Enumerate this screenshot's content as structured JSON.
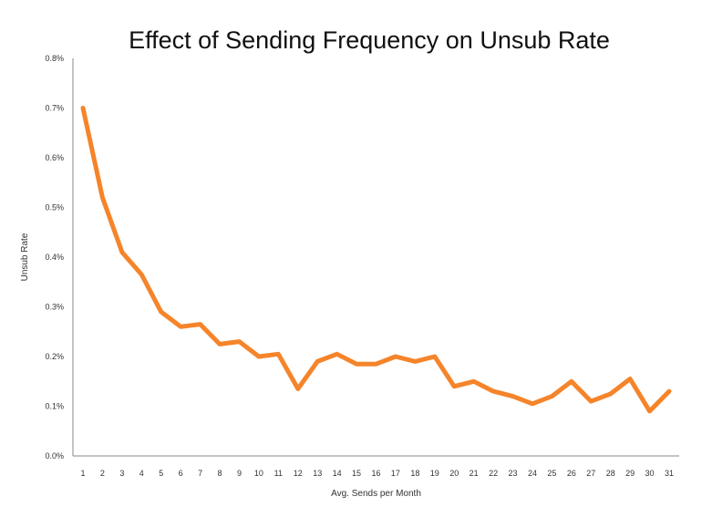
{
  "chart_data": {
    "type": "line",
    "title": "Effect of Sending Frequency on Unsub Rate",
    "xlabel": "Avg. Sends per Month",
    "ylabel": "Unsub Rate",
    "x": [
      1,
      2,
      3,
      4,
      5,
      6,
      7,
      8,
      9,
      10,
      11,
      12,
      13,
      14,
      15,
      16,
      17,
      18,
      19,
      20,
      21,
      22,
      23,
      24,
      25,
      26,
      27,
      28,
      29,
      30,
      31
    ],
    "series": [
      {
        "values": [
          0.7,
          0.52,
          0.41,
          0.365,
          0.29,
          0.26,
          0.265,
          0.225,
          0.23,
          0.2,
          0.205,
          0.135,
          0.19,
          0.205,
          0.185,
          0.185,
          0.2,
          0.19,
          0.2,
          0.14,
          0.15,
          0.13,
          0.12,
          0.105,
          0.12,
          0.15,
          0.11,
          0.125,
          0.155,
          0.09,
          0.13
        ],
        "color": "#f5842a"
      }
    ],
    "ylim": [
      0,
      0.8
    ],
    "yticks": [
      0,
      0.1,
      0.2,
      0.3,
      0.4,
      0.5,
      0.6,
      0.7,
      0.8
    ],
    "ytick_labels": [
      "0.0%",
      "0.1%",
      "0.2%",
      "0.3%",
      "0.4%",
      "0.5%",
      "0.6%",
      "0.7%",
      "0.8%"
    ],
    "xtick_labels": [
      "1",
      "2",
      "3",
      "4",
      "5",
      "6",
      "7",
      "8",
      "9",
      "10",
      "11",
      "12",
      "13",
      "14",
      "15",
      "16",
      "17",
      "18",
      "19",
      "20",
      "21",
      "22",
      "23",
      "24",
      "25",
      "26",
      "27",
      "28",
      "29",
      "30",
      "31"
    ],
    "grid": false,
    "legend": "none"
  }
}
